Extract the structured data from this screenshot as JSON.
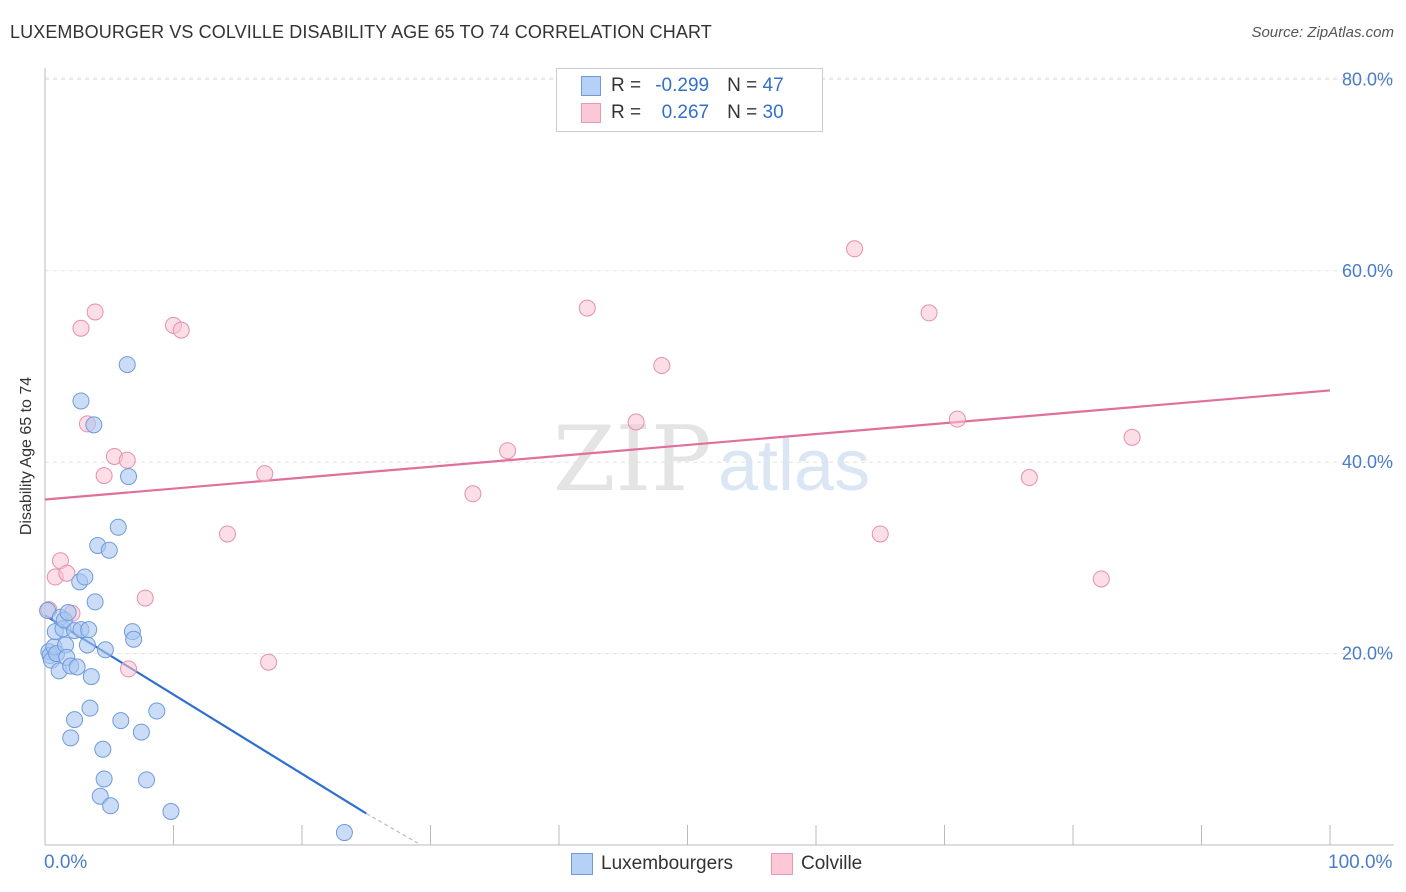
{
  "header": {
    "title": "LUXEMBOURGER VS COLVILLE DISABILITY AGE 65 TO 74 CORRELATION CHART",
    "source": "Source: ZipAtlas.com"
  },
  "watermark": {
    "part1": "ZIP",
    "part2": "atlas"
  },
  "legend": {
    "rows": [
      {
        "r_label": "R =",
        "r_value": "-0.299",
        "n_label": "N =",
        "n_value": "47"
      },
      {
        "r_label": "R =",
        "r_value": "0.267",
        "n_label": "N =",
        "n_value": "30"
      }
    ]
  },
  "bottom_legend": {
    "series1": "Luxembourgers",
    "series2": "Colville"
  },
  "x_axis": {
    "min_label": "0.0%",
    "max_label": "100.0%"
  },
  "colors": {
    "blue_fill": "#a9c6f0",
    "blue_stroke": "#6f9bdc",
    "blue_line": "#2f6fcf",
    "pink_fill": "#f9c2d4",
    "pink_stroke": "#e58fae",
    "pink_line": "#e0709a",
    "grid": "#e3e3e3",
    "axis_label": "#4a7cc9"
  },
  "chart_data": {
    "type": "scatter",
    "title": "LUXEMBOURGER VS COLVILLE DISABILITY AGE 65 TO 74 CORRELATION CHART",
    "xlabel": "",
    "ylabel": "Disability Age 65 to 74",
    "xlim": [
      0,
      100
    ],
    "ylim": [
      0,
      82
    ],
    "y_ticks": [
      20,
      40,
      60,
      80
    ],
    "y_tick_labels": [
      "20.0%",
      "40.0%",
      "60.0%",
      "80.0%"
    ],
    "x_tick_labels": [
      "0.0%",
      "100.0%"
    ],
    "series": [
      {
        "name": "Luxembourgers",
        "r": -0.299,
        "n": 47,
        "points": [
          [
            0.2,
            24.5
          ],
          [
            0.3,
            20.2
          ],
          [
            0.4,
            19.8
          ],
          [
            0.5,
            19.3
          ],
          [
            0.7,
            20.7
          ],
          [
            0.8,
            22.3
          ],
          [
            0.9,
            20.0
          ],
          [
            1.1,
            18.2
          ],
          [
            1.2,
            23.8
          ],
          [
            1.4,
            22.6
          ],
          [
            1.5,
            23.5
          ],
          [
            1.6,
            20.9
          ],
          [
            1.7,
            19.6
          ],
          [
            1.8,
            24.3
          ],
          [
            2.0,
            18.7
          ],
          [
            2.0,
            11.2
          ],
          [
            2.3,
            22.4
          ],
          [
            2.3,
            13.1
          ],
          [
            2.5,
            18.6
          ],
          [
            2.7,
            27.5
          ],
          [
            2.8,
            22.5
          ],
          [
            2.8,
            46.4
          ],
          [
            3.1,
            28.0
          ],
          [
            3.3,
            20.9
          ],
          [
            3.4,
            22.5
          ],
          [
            3.5,
            14.3
          ],
          [
            3.6,
            17.6
          ],
          [
            3.8,
            43.9
          ],
          [
            3.9,
            25.4
          ],
          [
            4.1,
            31.3
          ],
          [
            4.5,
            10.0
          ],
          [
            4.3,
            5.1
          ],
          [
            4.6,
            6.9
          ],
          [
            4.7,
            20.4
          ],
          [
            5.0,
            30.8
          ],
          [
            5.1,
            4.1
          ],
          [
            5.7,
            33.2
          ],
          [
            5.9,
            13.0
          ],
          [
            6.4,
            50.2
          ],
          [
            6.5,
            38.5
          ],
          [
            6.8,
            22.3
          ],
          [
            6.9,
            21.5
          ],
          [
            7.5,
            11.8
          ],
          [
            7.9,
            6.8
          ],
          [
            8.7,
            14.0
          ],
          [
            9.8,
            3.5
          ],
          [
            23.3,
            1.3
          ]
        ],
        "trend": {
          "x": [
            0,
            25
          ],
          "y": [
            24.0,
            3.3
          ],
          "dashed_to": {
            "x": 29,
            "y": 0.2
          }
        }
      },
      {
        "name": "Colville",
        "r": 0.267,
        "n": 30,
        "points": [
          [
            0.3,
            24.6
          ],
          [
            0.8,
            28.0
          ],
          [
            1.2,
            29.7
          ],
          [
            1.7,
            28.4
          ],
          [
            2.1,
            24.2
          ],
          [
            2.8,
            54.0
          ],
          [
            3.3,
            44.0
          ],
          [
            3.9,
            55.7
          ],
          [
            4.6,
            38.6
          ],
          [
            5.4,
            40.6
          ],
          [
            6.4,
            40.2
          ],
          [
            6.5,
            18.4
          ],
          [
            7.8,
            25.8
          ],
          [
            10.0,
            54.3
          ],
          [
            10.6,
            53.8
          ],
          [
            14.2,
            32.5
          ],
          [
            17.1,
            38.8
          ],
          [
            17.4,
            19.1
          ],
          [
            33.3,
            36.7
          ],
          [
            36.0,
            41.2
          ],
          [
            42.2,
            56.1
          ],
          [
            46.0,
            44.2
          ],
          [
            48.0,
            50.1
          ],
          [
            63.0,
            62.3
          ],
          [
            65.0,
            32.5
          ],
          [
            68.8,
            55.6
          ],
          [
            71.0,
            44.5
          ],
          [
            76.6,
            38.4
          ],
          [
            82.2,
            27.8
          ],
          [
            84.6,
            42.6
          ]
        ],
        "trend": {
          "x": [
            0,
            100
          ],
          "y": [
            36.1,
            47.5
          ]
        }
      }
    ]
  }
}
